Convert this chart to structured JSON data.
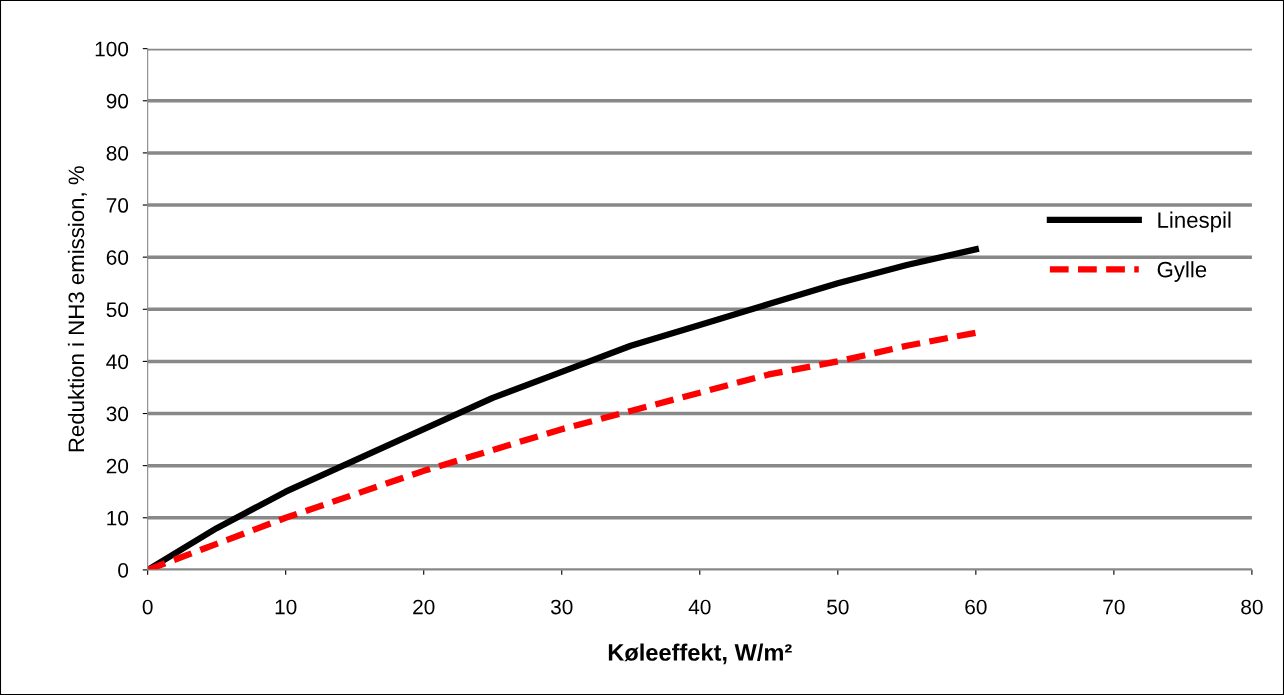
{
  "chart_data": {
    "type": "line",
    "xlabel": "Køleeffekt, W/m²",
    "ylabel": "Reduktion i NH3 emission, %",
    "x": [
      0,
      5,
      10,
      15,
      20,
      25,
      30,
      35,
      40,
      45,
      50,
      55,
      60
    ],
    "series": [
      {
        "name": "Linespil",
        "color": "#000000",
        "line_style": "solid",
        "values": [
          0,
          8,
          15,
          21,
          27,
          33,
          38,
          43,
          47,
          51,
          55,
          58.5,
          61.5
        ]
      },
      {
        "name": "Gylle",
        "color": "#ff0000",
        "line_style": "dashed",
        "values": [
          0,
          5,
          10,
          14.5,
          19,
          23,
          27,
          30.5,
          34,
          37.5,
          40,
          43,
          45.5
        ]
      }
    ],
    "xlim": [
      0,
      80
    ],
    "xticks": [
      0,
      10,
      20,
      30,
      40,
      50,
      60,
      70,
      80
    ],
    "ylim": [
      0,
      100
    ],
    "yticks": [
      0,
      10,
      20,
      30,
      40,
      50,
      60,
      70,
      80,
      90,
      100
    ],
    "grid": "y",
    "legend": "right",
    "marker": "none"
  }
}
